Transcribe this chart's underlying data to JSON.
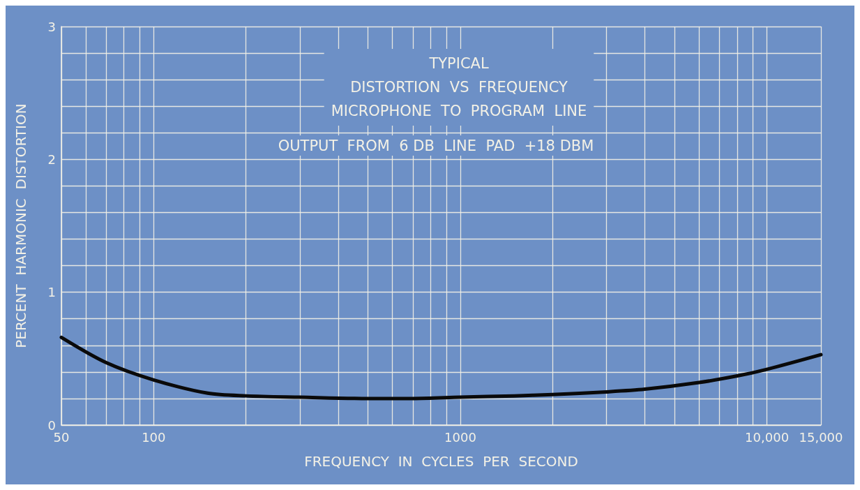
{
  "chart_data": {
    "type": "line",
    "title": "TYPICAL\nDISTORTION  VS  FREQUENCY\nMICROPHONE  TO  PROGRAM  LINE",
    "subtitle": "OUTPUT  FROM  6 DB  LINE  PAD  +18 DBM",
    "xlabel": "FREQUENCY  IN  CYCLES  PER  SECOND",
    "ylabel": "PERCENT  HARMONIC  DISTORTION",
    "x": [
      50,
      70,
      100,
      150,
      200,
      300,
      500,
      700,
      1000,
      1500,
      2000,
      3000,
      4000,
      6000,
      8000,
      10000,
      15000
    ],
    "series": [
      {
        "color": "#0a0a0a",
        "values": [
          0.66,
          0.47,
          0.34,
          0.24,
          0.22,
          0.21,
          0.2,
          0.2,
          0.21,
          0.22,
          0.23,
          0.25,
          0.27,
          0.32,
          0.37,
          0.42,
          0.53
        ]
      }
    ],
    "log": "x",
    "xlim": [
      50,
      15000
    ],
    "xticks": [
      50,
      {
        "value": 60,
        "label": null
      },
      {
        "value": 70,
        "label": null
      },
      {
        "value": 80,
        "label": null
      },
      {
        "value": 90,
        "label": null
      },
      100,
      {
        "value": 200,
        "label": null
      },
      {
        "value": 300,
        "label": null
      },
      {
        "value": 400,
        "label": null
      },
      {
        "value": 500,
        "label": null
      },
      {
        "value": 600,
        "label": null
      },
      {
        "value": 700,
        "label": null
      },
      {
        "value": 800,
        "label": null
      },
      {
        "value": 900,
        "label": null
      },
      1000,
      {
        "value": 2000,
        "label": null
      },
      {
        "value": 3000,
        "label": null
      },
      {
        "value": 4000,
        "label": null
      },
      {
        "value": 5000,
        "label": null
      },
      {
        "value": 6000,
        "label": null
      },
      {
        "value": 7000,
        "label": null
      },
      {
        "value": 8000,
        "label": null
      },
      {
        "value": 9000,
        "label": null
      },
      {
        "value": 10000,
        "label": "10,000"
      },
      {
        "value": 15000,
        "label": "15,000"
      }
    ],
    "ylim": [
      0,
      3
    ],
    "yticks": [
      0,
      {
        "value": 0.2,
        "label": null
      },
      {
        "value": 0.4,
        "label": null
      },
      {
        "value": 0.6,
        "label": null
      },
      {
        "value": 0.8,
        "label": null
      },
      1,
      {
        "value": 1.2,
        "label": null
      },
      {
        "value": 1.4,
        "label": null
      },
      {
        "value": 1.6,
        "label": null
      },
      {
        "value": 1.8,
        "label": null
      },
      2,
      {
        "value": 2.2,
        "label": null
      },
      {
        "value": 2.4,
        "label": null
      },
      {
        "value": 2.6,
        "label": null
      },
      {
        "value": 2.8,
        "label": null
      },
      3
    ],
    "grid": true,
    "marker": "none",
    "line_style": "solid"
  }
}
